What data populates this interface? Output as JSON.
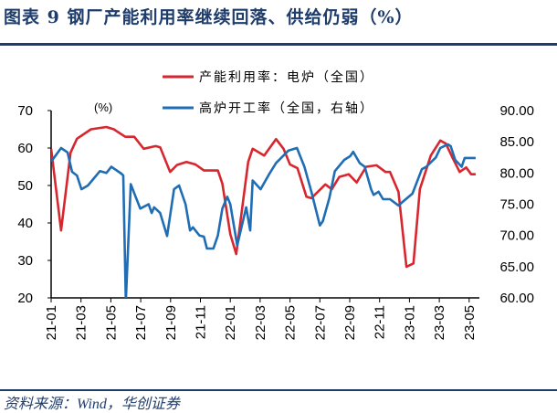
{
  "title": "图表 9   钢厂产能利用率继续回落、供给仍弱（%）",
  "source": "资料来源：Wind，华创证券",
  "chart_data": {
    "type": "line",
    "title": "图表 9   钢厂产能利用率继续回落、供给仍弱（%）",
    "unit_label": "(%)",
    "legend_position": "top-center",
    "grid": false,
    "x_ticks": [
      "21-01",
      "21-03",
      "21-05",
      "21-07",
      "21-09",
      "21-11",
      "22-01",
      "22-03",
      "22-05",
      "22-07",
      "22-09",
      "22-11",
      "23-01",
      "23-03",
      "23-05"
    ],
    "x_range": [
      "2021-01-01",
      "2023-05-24"
    ],
    "y_left": {
      "range": [
        20,
        70
      ],
      "ticks": [
        "70",
        "60",
        "50",
        "40",
        "30",
        "20"
      ]
    },
    "y_right": {
      "range": [
        60,
        90
      ],
      "ticks": [
        "90.00",
        "85.00",
        "80.00",
        "75.00",
        "70.00",
        "65.00",
        "60.00"
      ]
    },
    "series": [
      {
        "name": "产能利用率：电炉（全国）",
        "axis": "left",
        "color": "#d7262e",
        "points": [
          [
            "2021-01-01",
            59.8
          ],
          [
            "2021-01-21",
            38
          ],
          [
            "2021-02-10",
            58.8
          ],
          [
            "2021-02-23",
            62.5
          ],
          [
            "2021-03-21",
            65
          ],
          [
            "2021-04-22",
            65.6
          ],
          [
            "2021-05-07",
            65
          ],
          [
            "2021-05-30",
            63
          ],
          [
            "2021-06-18",
            63
          ],
          [
            "2021-07-07",
            59.8
          ],
          [
            "2021-08-01",
            60.5
          ],
          [
            "2021-08-10",
            60.2
          ],
          [
            "2021-08-30",
            53.6
          ],
          [
            "2021-09-14",
            55.5
          ],
          [
            "2021-10-03",
            56.3
          ],
          [
            "2021-10-21",
            55.6
          ],
          [
            "2021-11-08",
            54
          ],
          [
            "2021-12-06",
            54
          ],
          [
            "2021-12-15",
            50.5
          ],
          [
            "2021-12-31",
            37
          ],
          [
            "2022-01-13",
            31.7
          ],
          [
            "2022-02-07",
            56.3
          ],
          [
            "2022-02-16",
            59.8
          ],
          [
            "2022-03-09",
            58
          ],
          [
            "2022-04-03",
            62.4
          ],
          [
            "2022-04-18",
            59.8
          ],
          [
            "2022-05-01",
            55.6
          ],
          [
            "2022-05-16",
            54.6
          ],
          [
            "2022-06-04",
            47
          ],
          [
            "2022-06-14",
            46.6
          ],
          [
            "2022-07-12",
            50.3
          ],
          [
            "2022-07-25",
            49
          ],
          [
            "2022-08-10",
            52.3
          ],
          [
            "2022-08-29",
            53
          ],
          [
            "2022-09-15",
            50.8
          ],
          [
            "2022-10-04",
            55
          ],
          [
            "2022-10-25",
            55.4
          ],
          [
            "2022-11-13",
            53.6
          ],
          [
            "2022-11-22",
            53.6
          ],
          [
            "2022-12-09",
            48.3
          ],
          [
            "2022-12-25",
            28.3
          ],
          [
            "2023-01-09",
            29.2
          ],
          [
            "2023-01-22",
            49
          ],
          [
            "2023-02-14",
            58
          ],
          [
            "2023-03-03",
            62
          ],
          [
            "2023-03-14",
            61.2
          ],
          [
            "2023-03-28",
            57.3
          ],
          [
            "2023-04-12",
            53.6
          ],
          [
            "2023-04-25",
            54.8
          ],
          [
            "2023-05-05",
            53
          ],
          [
            "2023-05-14",
            53
          ]
        ]
      },
      {
        "name": "高炉开工率（全国，右轴）",
        "axis": "right",
        "color": "#1f6db5",
        "points": [
          [
            "2021-01-01",
            81.8
          ],
          [
            "2021-01-21",
            84
          ],
          [
            "2021-02-04",
            83.3
          ],
          [
            "2021-02-13",
            80.2
          ],
          [
            "2021-02-23",
            79.6
          ],
          [
            "2021-03-02",
            77.4
          ],
          [
            "2021-03-15",
            78
          ],
          [
            "2021-04-09",
            80.3
          ],
          [
            "2021-04-22",
            80
          ],
          [
            "2021-05-02",
            81
          ],
          [
            "2021-05-22",
            79.9
          ],
          [
            "2021-05-26",
            79.6
          ],
          [
            "2021-06-01",
            59.4
          ],
          [
            "2021-06-11",
            78.2
          ],
          [
            "2021-06-30",
            74.3
          ],
          [
            "2021-07-17",
            75
          ],
          [
            "2021-07-23",
            73.6
          ],
          [
            "2021-07-28",
            74.5
          ],
          [
            "2021-08-10",
            73.6
          ],
          [
            "2021-08-24",
            69.9
          ],
          [
            "2021-09-08",
            77.4
          ],
          [
            "2021-09-18",
            78
          ],
          [
            "2021-10-01",
            75
          ],
          [
            "2021-10-10",
            70.8
          ],
          [
            "2021-10-16",
            71.3
          ],
          [
            "2021-10-29",
            70
          ],
          [
            "2021-11-08",
            69.8
          ],
          [
            "2021-11-14",
            67.9
          ],
          [
            "2021-11-27",
            67.9
          ],
          [
            "2021-12-06",
            70
          ],
          [
            "2021-12-15",
            74.3
          ],
          [
            "2021-12-25",
            76.2
          ],
          [
            "2021-12-31",
            75
          ],
          [
            "2022-01-15",
            68.4
          ],
          [
            "2022-02-03",
            74.5
          ],
          [
            "2022-02-11",
            70.8
          ],
          [
            "2022-02-16",
            78.8
          ],
          [
            "2022-03-02",
            77.4
          ],
          [
            "2022-03-19",
            79.8
          ],
          [
            "2022-04-03",
            81.6
          ],
          [
            "2022-04-28",
            83.6
          ],
          [
            "2022-05-15",
            84
          ],
          [
            "2022-05-30",
            81
          ],
          [
            "2022-06-14",
            77
          ],
          [
            "2022-07-01",
            71.6
          ],
          [
            "2022-07-07",
            72.3
          ],
          [
            "2022-07-20",
            76
          ],
          [
            "2022-08-01",
            80.3
          ],
          [
            "2022-08-20",
            82.1
          ],
          [
            "2022-09-02",
            82.7
          ],
          [
            "2022-09-08",
            83.4
          ],
          [
            "2022-09-21",
            81.6
          ],
          [
            "2022-10-01",
            81
          ],
          [
            "2022-10-14",
            77.4
          ],
          [
            "2022-10-19",
            76.5
          ],
          [
            "2022-10-29",
            77
          ],
          [
            "2022-11-08",
            75.8
          ],
          [
            "2022-11-22",
            75.8
          ],
          [
            "2022-12-09",
            74.8
          ],
          [
            "2022-12-19",
            75.5
          ],
          [
            "2023-01-07",
            76.7
          ],
          [
            "2023-01-26",
            80.6
          ],
          [
            "2023-02-05",
            81
          ],
          [
            "2023-02-24",
            82.5
          ],
          [
            "2023-03-03",
            84
          ],
          [
            "2023-03-18",
            84.6
          ],
          [
            "2023-03-24",
            84.3
          ],
          [
            "2023-04-03",
            82.1
          ],
          [
            "2023-04-16",
            81
          ],
          [
            "2023-04-22",
            82.4
          ],
          [
            "2023-05-14",
            82.4
          ]
        ]
      }
    ]
  }
}
